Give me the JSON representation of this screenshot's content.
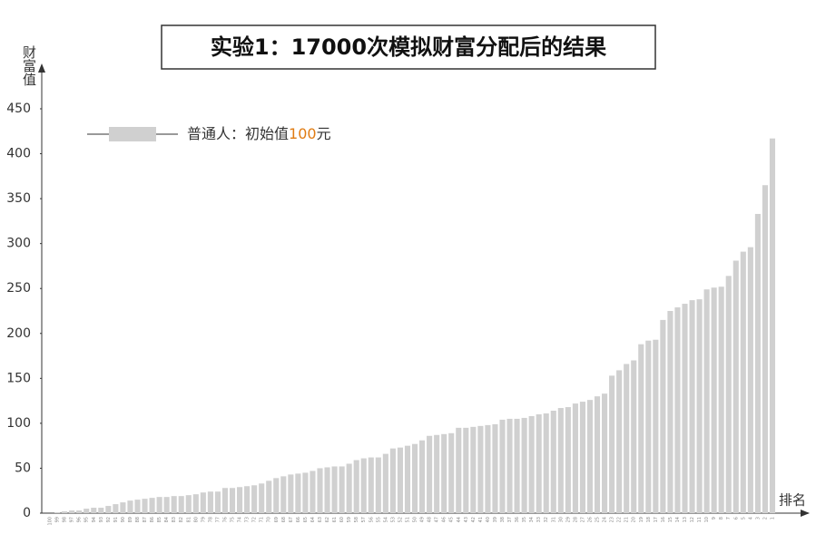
{
  "chart_data": {
    "type": "bar",
    "title": "实验1：17000次模拟财富分配后的结果",
    "y_label": "财富值",
    "x_label": "排名",
    "legend_parts": [
      "普通人：初始值",
      "100",
      "元"
    ],
    "color": "#d0d0d0",
    "highlight_color": "#e07b12",
    "categories": [
      "100",
      "99",
      "98",
      "97",
      "96",
      "95",
      "94",
      "93",
      "92",
      "91",
      "90",
      "89",
      "88",
      "87",
      "86",
      "85",
      "84",
      "83",
      "82",
      "81",
      "80",
      "79",
      "78",
      "77",
      "76",
      "75",
      "74",
      "73",
      "72",
      "71",
      "70",
      "69",
      "68",
      "67",
      "66",
      "65",
      "64",
      "63",
      "62",
      "61",
      "60",
      "59",
      "58",
      "57",
      "56",
      "55",
      "54",
      "53",
      "52",
      "51",
      "50",
      "49",
      "48",
      "47",
      "46",
      "45",
      "44",
      "43",
      "42",
      "41",
      "40",
      "39",
      "38",
      "37",
      "36",
      "35",
      "34",
      "33",
      "32",
      "31",
      "30",
      "29",
      "28",
      "27",
      "26",
      "25",
      "24",
      "23",
      "22",
      "21",
      "20",
      "19",
      "18",
      "17",
      "16",
      "15",
      "14",
      "13",
      "12",
      "11",
      "10",
      "9",
      "8",
      "7",
      "6",
      "5",
      "4",
      "3",
      "2",
      "1"
    ],
    "values": [
      0,
      1,
      2,
      3,
      3,
      5,
      6,
      6,
      8,
      10,
      12,
      14,
      15,
      16,
      17,
      18,
      18,
      19,
      19,
      20,
      21,
      23,
      24,
      24,
      28,
      28,
      29,
      30,
      31,
      33,
      36,
      39,
      41,
      43,
      44,
      45,
      47,
      50,
      51,
      52,
      52,
      55,
      59,
      61,
      62,
      62,
      66,
      72,
      73,
      75,
      77,
      81,
      86,
      87,
      88,
      89,
      95,
      95,
      96,
      97,
      98,
      99,
      104,
      105,
      105,
      106,
      108,
      110,
      111,
      114,
      117,
      118,
      122,
      124,
      126,
      130,
      133,
      153,
      159,
      166,
      170,
      188,
      192,
      193,
      215,
      225,
      229,
      233,
      237,
      238,
      249,
      251,
      252,
      264,
      281,
      291,
      296,
      333,
      365,
      417
    ],
    "ylim": [
      0,
      450
    ],
    "yticks": [
      0,
      50,
      100,
      150,
      200,
      250,
      300,
      350,
      400,
      450
    ]
  }
}
